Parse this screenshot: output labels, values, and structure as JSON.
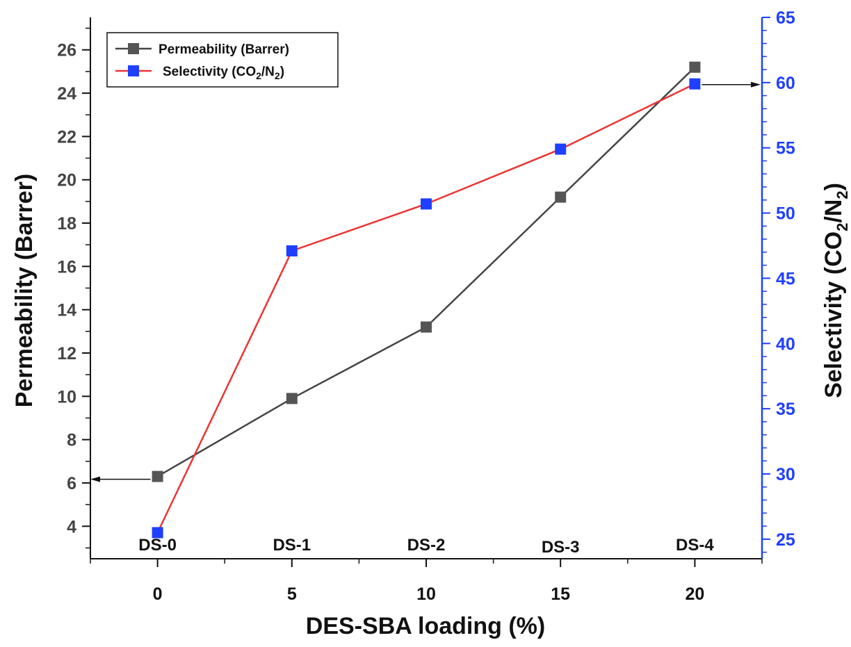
{
  "chart_data": {
    "type": "line",
    "x": [
      0,
      5,
      10,
      15,
      20
    ],
    "x_ticks": [
      "0",
      "5",
      "10",
      "15",
      "20"
    ],
    "xlim": [
      -2.5,
      22.5
    ],
    "category_labels": [
      "DS-0",
      "DS-1",
      "DS-2",
      "DS-3",
      "DS-4"
    ],
    "xlabel": "DES-SBA loading (%)",
    "left_axis": {
      "label": "Permeability (Barrer)",
      "ylim": [
        2.5,
        27.5
      ],
      "ticks": [
        "4",
        "6",
        "8",
        "10",
        "12",
        "14",
        "16",
        "18",
        "20",
        "22",
        "24",
        "26"
      ],
      "color": "#111111"
    },
    "right_axis": {
      "label_main": "Selectivity (CO",
      "label_sub1": "2",
      "label_mid": "/N",
      "label_sub2": "2",
      "label_end": ")",
      "ylim": [
        23.5,
        65
      ],
      "ticks": [
        "25",
        "30",
        "35",
        "40",
        "45",
        "50",
        "55",
        "60",
        "65"
      ],
      "color": "#1f3fff"
    },
    "series": [
      {
        "name": "Permeability (Barrer)",
        "axis": "left",
        "color": "#555555",
        "line_color": "#444444",
        "values": [
          6.3,
          9.9,
          13.2,
          19.2,
          25.2
        ]
      },
      {
        "name_main": "Selectivity (CO",
        "name_sub1": "2",
        "name_mid": "/N",
        "name_sub2": "2",
        "name_end": ")",
        "axis": "right",
        "color": "#1f3fff",
        "line_color": "#ee3333",
        "values": [
          25.5,
          47.1,
          50.7,
          54.9,
          59.9
        ]
      }
    ],
    "legend_position": "top-left",
    "grid": false
  }
}
